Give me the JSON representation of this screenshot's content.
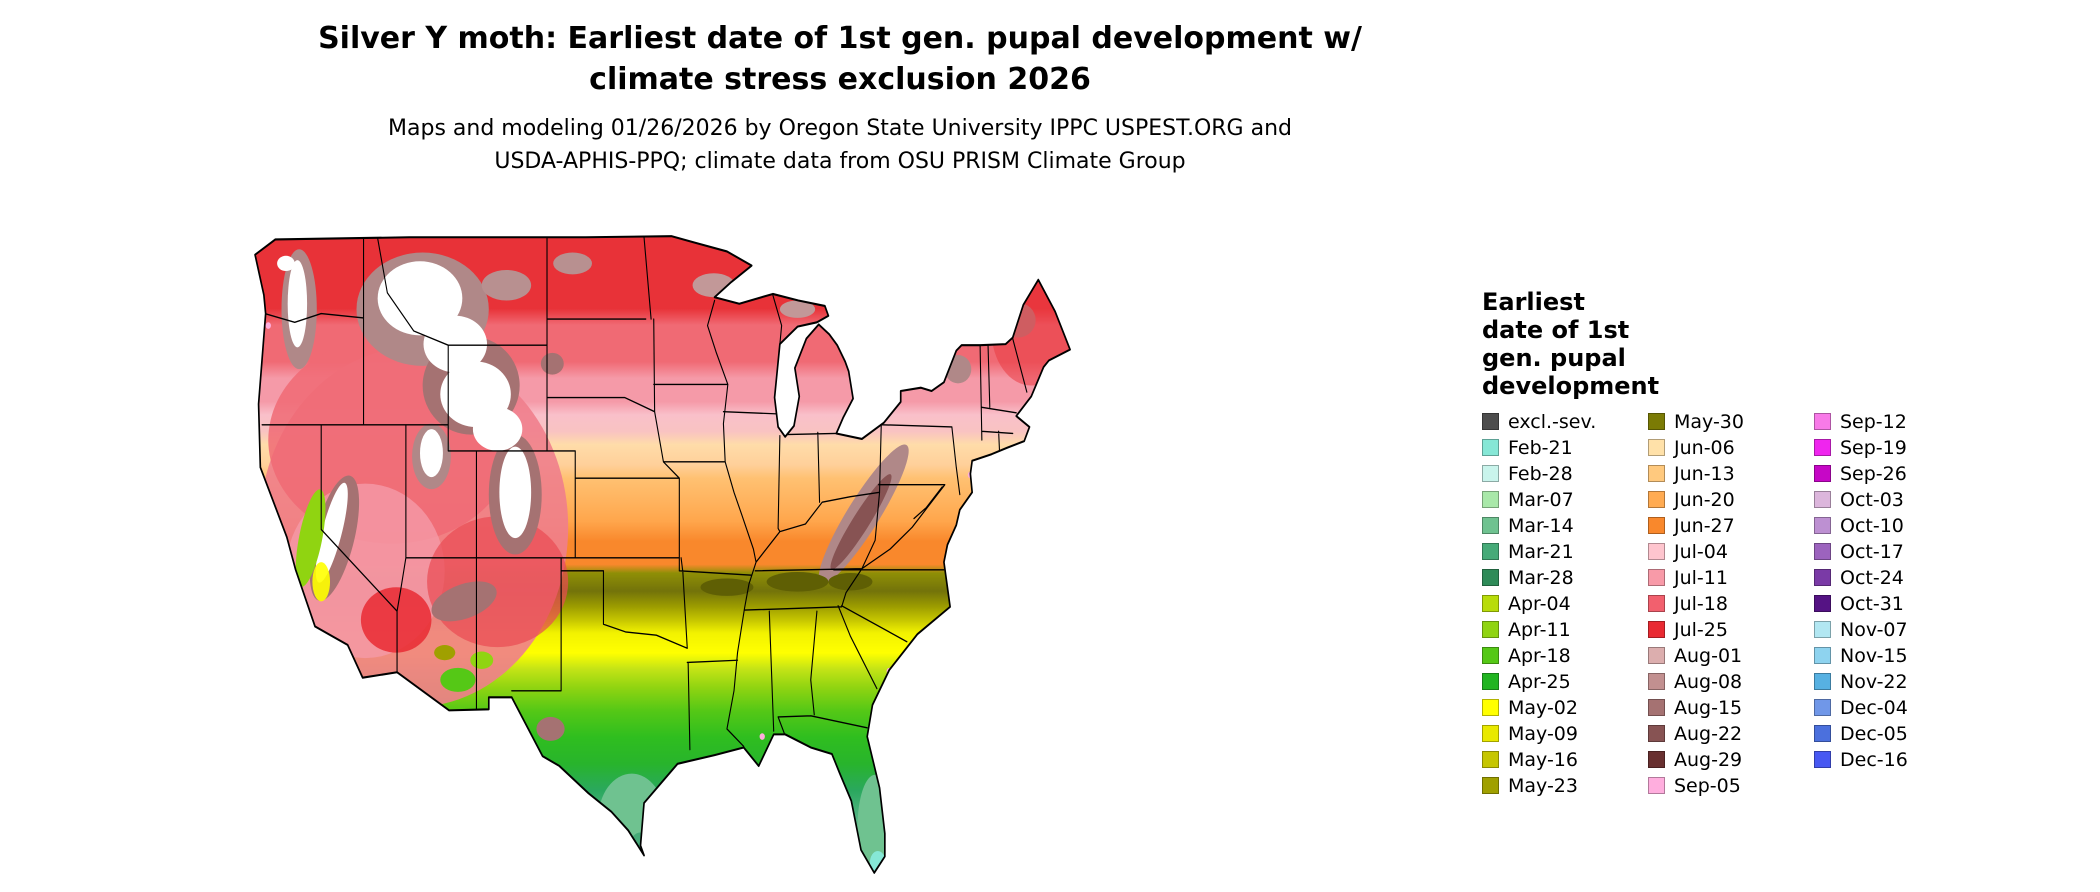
{
  "title": {
    "line1": "Silver Y moth: Earliest date of 1st gen. pupal development w/",
    "line2": "climate stress exclusion 2026"
  },
  "subtitle": {
    "line1": "Maps and modeling 01/26/2026 by Oregon State University IPPC USPEST.ORG and",
    "line2": "USDA-APHIS-PPQ; climate data from OSU PRISM Climate Group"
  },
  "legend": {
    "title_lines": [
      "Earliest",
      "date of 1st",
      "gen. pupal",
      "development"
    ],
    "columns": [
      {
        "entries": [
          {
            "label": "excl.-sev.",
            "color": "#4d4d4d"
          },
          {
            "label": "Feb-21",
            "color": "#86e7d6"
          },
          {
            "label": "Feb-28",
            "color": "#c9f4ec"
          },
          {
            "label": "Mar-07",
            "color": "#a9e8a9"
          },
          {
            "label": "Mar-14",
            "color": "#6fc290"
          },
          {
            "label": "Mar-21",
            "color": "#46aa78"
          },
          {
            "label": "Mar-28",
            "color": "#2e8b58"
          },
          {
            "label": "Apr-04",
            "color": "#b8dc0a"
          },
          {
            "label": "Apr-11",
            "color": "#90d411"
          },
          {
            "label": "Apr-18",
            "color": "#55c816"
          },
          {
            "label": "Apr-25",
            "color": "#21b421"
          },
          {
            "label": "May-02",
            "color": "#ffff00"
          },
          {
            "label": "May-09",
            "color": "#e9e900"
          },
          {
            "label": "May-16",
            "color": "#c6c600"
          },
          {
            "label": "May-23",
            "color": "#a0a000"
          }
        ]
      },
      {
        "entries": [
          {
            "label": "May-30",
            "color": "#7b7b05"
          },
          {
            "label": "Jun-06",
            "color": "#ffe1a9"
          },
          {
            "label": "Jun-13",
            "color": "#ffc97e"
          },
          {
            "label": "Jun-20",
            "color": "#ffab52"
          },
          {
            "label": "Jun-27",
            "color": "#f9882c"
          },
          {
            "label": "Jul-04",
            "color": "#fec5ce"
          },
          {
            "label": "Jul-11",
            "color": "#f89aa8"
          },
          {
            "label": "Jul-18",
            "color": "#f2606e"
          },
          {
            "label": "Jul-25",
            "color": "#e92a32"
          },
          {
            "label": "Aug-01",
            "color": "#dcaeae"
          },
          {
            "label": "Aug-08",
            "color": "#c29090"
          },
          {
            "label": "Aug-15",
            "color": "#a57272"
          },
          {
            "label": "Aug-22",
            "color": "#875353"
          },
          {
            "label": "Aug-29",
            "color": "#683030"
          },
          {
            "label": "Sep-05",
            "color": "#ffaede"
          }
        ]
      },
      {
        "entries": [
          {
            "label": "Sep-12",
            "color": "#f87ae8"
          },
          {
            "label": "Sep-19",
            "color": "#ef25ee"
          },
          {
            "label": "Sep-26",
            "color": "#c607c6"
          },
          {
            "label": "Oct-03",
            "color": "#dcb6dc"
          },
          {
            "label": "Oct-10",
            "color": "#bd90d2"
          },
          {
            "label": "Oct-17",
            "color": "#9c63be"
          },
          {
            "label": "Oct-24",
            "color": "#7a3aa6"
          },
          {
            "label": "Oct-31",
            "color": "#551384"
          },
          {
            "label": "Nov-07",
            "color": "#b2e7f2"
          },
          {
            "label": "Nov-15",
            "color": "#8ed3ef"
          },
          {
            "label": "Nov-22",
            "color": "#57b1e2"
          },
          {
            "label": "Dec-04",
            "color": "#7097e8"
          },
          {
            "label": "Dec-05",
            "color": "#4b70dd"
          },
          {
            "label": "Dec-16",
            "color": "#4758f2"
          }
        ]
      }
    ]
  }
}
